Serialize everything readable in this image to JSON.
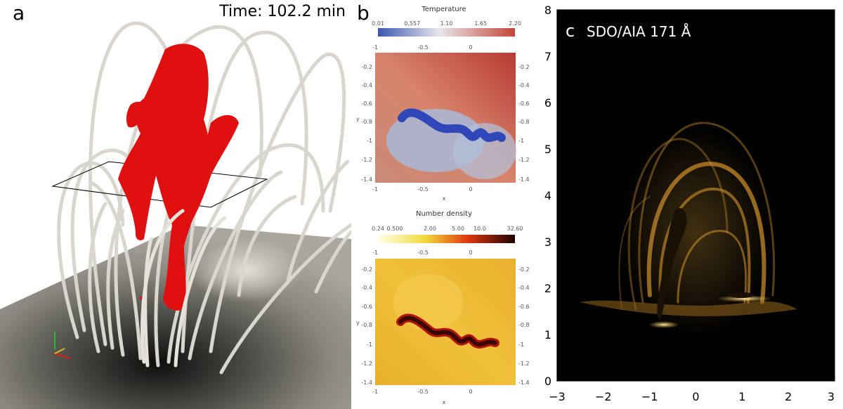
{
  "panel_a": {
    "letter": "a",
    "time_label": "Time: 102.2 min",
    "axes_labels": [
      "z",
      "y",
      "x"
    ]
  },
  "panel_b": {
    "letter": "b",
    "temperature": {
      "title": "Temperature",
      "colorbar_ticks": [
        "0.01",
        "0.557",
        "1.10",
        "1.65",
        "2.20"
      ],
      "top_ticks": [
        "-1",
        "-0.5",
        "0"
      ],
      "left_ticks": [
        "-0.2",
        "-0.4",
        "-0.6",
        "-0.8",
        "-1",
        "-1.2",
        "-1.4"
      ],
      "right_ticks": [
        "-0.2",
        "-0.4",
        "-0.6",
        "-0.8",
        "-1",
        "-1.2",
        "-1.4"
      ],
      "bottom_ticks": [
        "-1",
        "-0.5",
        "0"
      ],
      "xlabel": "x",
      "ylabel": "y"
    },
    "density": {
      "title": "Number density",
      "colorbar_ticks": [
        "0.24",
        "0.500",
        "2.00",
        "5.00",
        "10.0",
        "32.60"
      ],
      "top_ticks": [
        "-1",
        "-0.5",
        "0"
      ],
      "left_ticks": [
        "-0.2",
        "-0.4",
        "-0.6",
        "-0.8",
        "-1",
        "-1.2",
        "-1.4"
      ],
      "right_ticks": [
        "-0.2",
        "-0.4",
        "-0.6",
        "-0.8",
        "-1",
        "-1.2",
        "-1.4"
      ],
      "bottom_ticks": [
        "-1",
        "-0.5",
        "0"
      ],
      "xlabel": "x",
      "ylabel": "y"
    }
  },
  "panel_c": {
    "letter": "c",
    "label": "SDO/AIA 171 Å",
    "x_ticks": [
      "−3",
      "−2",
      "−1",
      "0",
      "1",
      "2",
      "3"
    ],
    "y_ticks": [
      "0",
      "1",
      "2",
      "3",
      "4",
      "5",
      "6",
      "7",
      "8"
    ]
  },
  "colors": {
    "prominence": "#e01010",
    "field_lines": "#d8d6cf",
    "temperature_cold": "#3a58b0",
    "temperature_hot": "#c5463a",
    "density_high": "#3a0505",
    "aia_glow": "#d9a13a"
  }
}
